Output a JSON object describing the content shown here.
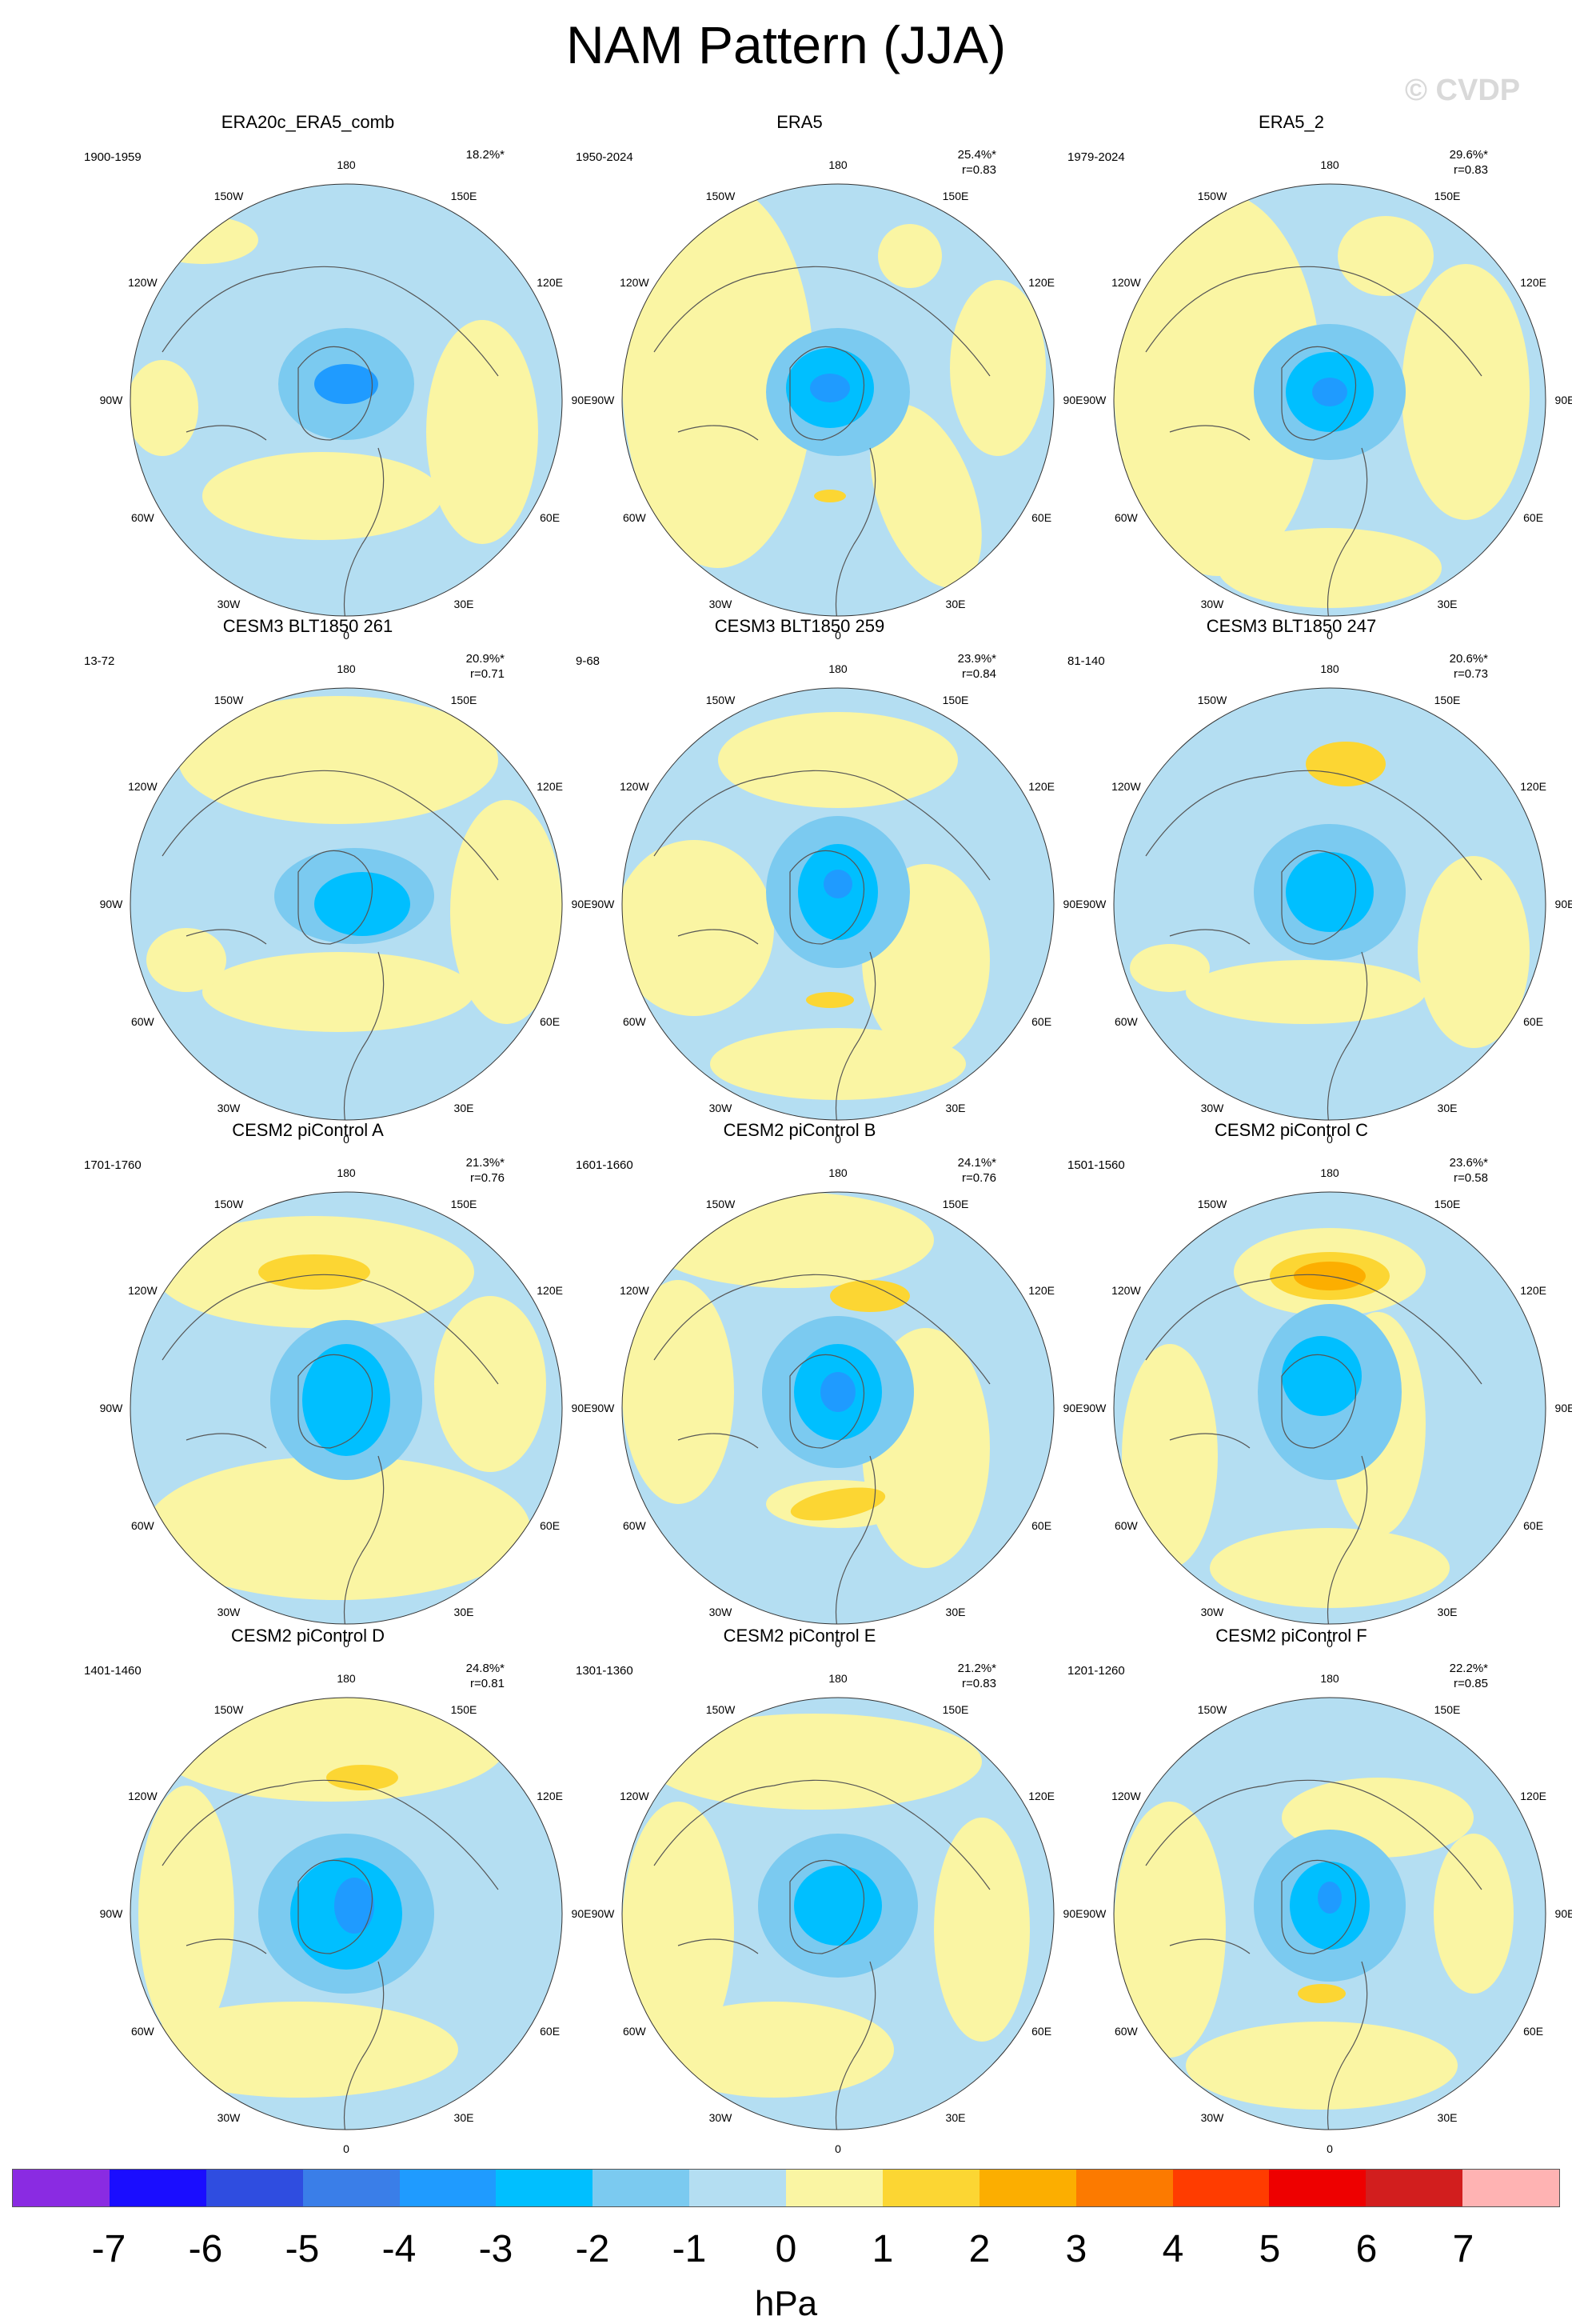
{
  "title": "NAM Pattern (JJA)",
  "watermark": "© CVDP",
  "panels": [
    {
      "title": "ERA20c_ERA5_comb",
      "period": "1900-1959",
      "pct": "18.2%*",
      "r": ""
    },
    {
      "title": "ERA5",
      "period": "1950-2024",
      "pct": "25.4%*",
      "r": "r=0.83"
    },
    {
      "title": "ERA5_2",
      "period": "1979-2024",
      "pct": "29.6%*",
      "r": "r=0.83"
    },
    {
      "title": "CESM3 BLT1850 261",
      "period": "13-72",
      "pct": "20.9%*",
      "r": "r=0.71"
    },
    {
      "title": "CESM3 BLT1850 259",
      "period": "9-68",
      "pct": "23.9%*",
      "r": "r=0.84"
    },
    {
      "title": "CESM3 BLT1850 247",
      "period": "81-140",
      "pct": "20.6%*",
      "r": "r=0.73"
    },
    {
      "title": "CESM2 piControl A",
      "period": "1701-1760",
      "pct": "21.3%*",
      "r": "r=0.76"
    },
    {
      "title": "CESM2 piControl B",
      "period": "1601-1660",
      "pct": "24.1%*",
      "r": "r=0.76"
    },
    {
      "title": "CESM2 piControl C",
      "period": "1501-1560",
      "pct": "23.6%*",
      "r": "r=0.58"
    },
    {
      "title": "CESM2 piControl D",
      "period": "1401-1460",
      "pct": "24.8%*",
      "r": "r=0.81"
    },
    {
      "title": "CESM2 piControl E",
      "period": "1301-1360",
      "pct": "21.2%*",
      "r": "r=0.83"
    },
    {
      "title": "CESM2 piControl F",
      "period": "1201-1260",
      "pct": "22.2%*",
      "r": "r=0.85"
    }
  ],
  "longitude_labels": [
    "180",
    "150E",
    "120E",
    "90E",
    "60E",
    "30E",
    "0",
    "30W",
    "60W",
    "90W",
    "120W",
    "150W"
  ],
  "colorbar": {
    "unit": "hPa",
    "ticks": [
      "-7",
      "-6",
      "-5",
      "-4",
      "-3",
      "-2",
      "-1",
      "0",
      "1",
      "2",
      "3",
      "4",
      "5",
      "6",
      "7"
    ],
    "colors": [
      "#8a2be2",
      "#1a0dff",
      "#2f4de0",
      "#3a7ee8",
      "#1f9bff",
      "#00bfff",
      "#7bcaf0",
      "#b4def2",
      "#faf5a3",
      "#fcd633",
      "#fcae00",
      "#fc7a00",
      "#ff3c00",
      "#ee0000",
      "#d21e1e",
      "#ffb3b3"
    ]
  },
  "palette": {
    "ocean_blue": "#b4def2",
    "positive_1": "#faf5a3",
    "positive_2": "#fcd633",
    "positive_3": "#fcae00",
    "negative_2": "#7bcaf0",
    "negative_3": "#00bfff",
    "negative_4": "#1f9bff"
  }
}
